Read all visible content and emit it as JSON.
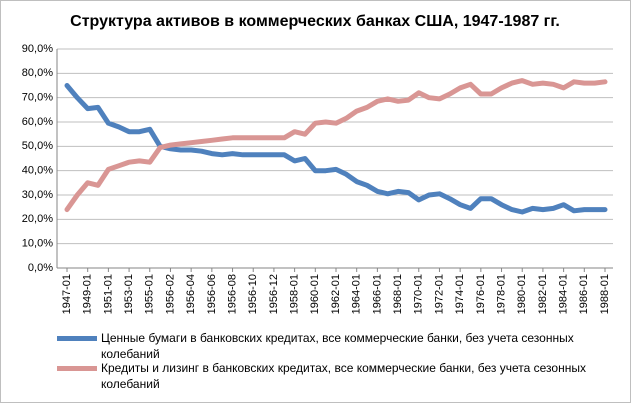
{
  "chart_data": {
    "type": "line",
    "title": "Структура активов в коммерческих банках США, 1947-1987 гг.",
    "categories": [
      "1947-01",
      null,
      "1949-01",
      null,
      "1951-01",
      null,
      "1953-01",
      null,
      "1955-01",
      null,
      "1956-02",
      null,
      "1956-04",
      null,
      "1956-06",
      null,
      "1956-08",
      null,
      "1956-10",
      null,
      "1956-12",
      null,
      "1958-01",
      null,
      "1960-01",
      null,
      "1962-01",
      null,
      "1964-01",
      null,
      "1966-01",
      null,
      "1968-01",
      null,
      "1970-01",
      null,
      "1972-01",
      null,
      "1974-01",
      null,
      "1976-01",
      null,
      "1978-01",
      null,
      "1980-01",
      null,
      "1982-01",
      null,
      "1984-01",
      null,
      "1986-01",
      null,
      "1988-01"
    ],
    "series": [
      {
        "name": "Ценные бумаги в банковских кредитах, все коммерческие банки, без учета сезонных колебаний",
        "color": "#4f81bd",
        "values": [
          75,
          70,
          65.5,
          66,
          59.5,
          58,
          56,
          56,
          57,
          50,
          49,
          48.5,
          48.5,
          48,
          47,
          46.5,
          47,
          46.5,
          46.5,
          46.5,
          46.5,
          46.5,
          44,
          45,
          40,
          40,
          40.5,
          38.5,
          35.5,
          34,
          31.5,
          30.5,
          31.5,
          31,
          28,
          30,
          30.5,
          28.5,
          26,
          24.5,
          28.5,
          28.5,
          26,
          24,
          23,
          24.5,
          24,
          24.5,
          26,
          23.5,
          24,
          24,
          24
        ]
      },
      {
        "name": "Кредиты и лизинг в банковских кредитах, все коммерческие банки, без учета сезонных колебаний",
        "color": "#d99694",
        "values": [
          24,
          30,
          35,
          34,
          40.5,
          42,
          43.5,
          44,
          43.5,
          49.5,
          50.5,
          51,
          51.5,
          52,
          52.5,
          53,
          53.5,
          53.5,
          53.5,
          53.5,
          53.5,
          53.5,
          56,
          55,
          59.5,
          60,
          59.5,
          61.5,
          64.5,
          66,
          68.5,
          69.5,
          68.5,
          69,
          72,
          70,
          69.5,
          71.5,
          74,
          75.5,
          71.5,
          71.5,
          74,
          76,
          77,
          75.5,
          76,
          75.5,
          74,
          76.5,
          76,
          76,
          76.5
        ]
      }
    ],
    "ylim": [
      0,
      90
    ],
    "yticks": [
      {
        "value": 0,
        "label": "0,0%"
      },
      {
        "value": 10,
        "label": "10,0%"
      },
      {
        "value": 20,
        "label": "20,0%"
      },
      {
        "value": 30,
        "label": "30,0%"
      },
      {
        "value": 40,
        "label": "40,0%"
      },
      {
        "value": 50,
        "label": "50,0%"
      },
      {
        "value": 60,
        "label": "60,0%"
      },
      {
        "value": 70,
        "label": "70,0%"
      },
      {
        "value": 80,
        "label": "80,0%"
      },
      {
        "value": 90,
        "label": "90,0%"
      }
    ],
    "grid": true,
    "legend": "bottom"
  }
}
